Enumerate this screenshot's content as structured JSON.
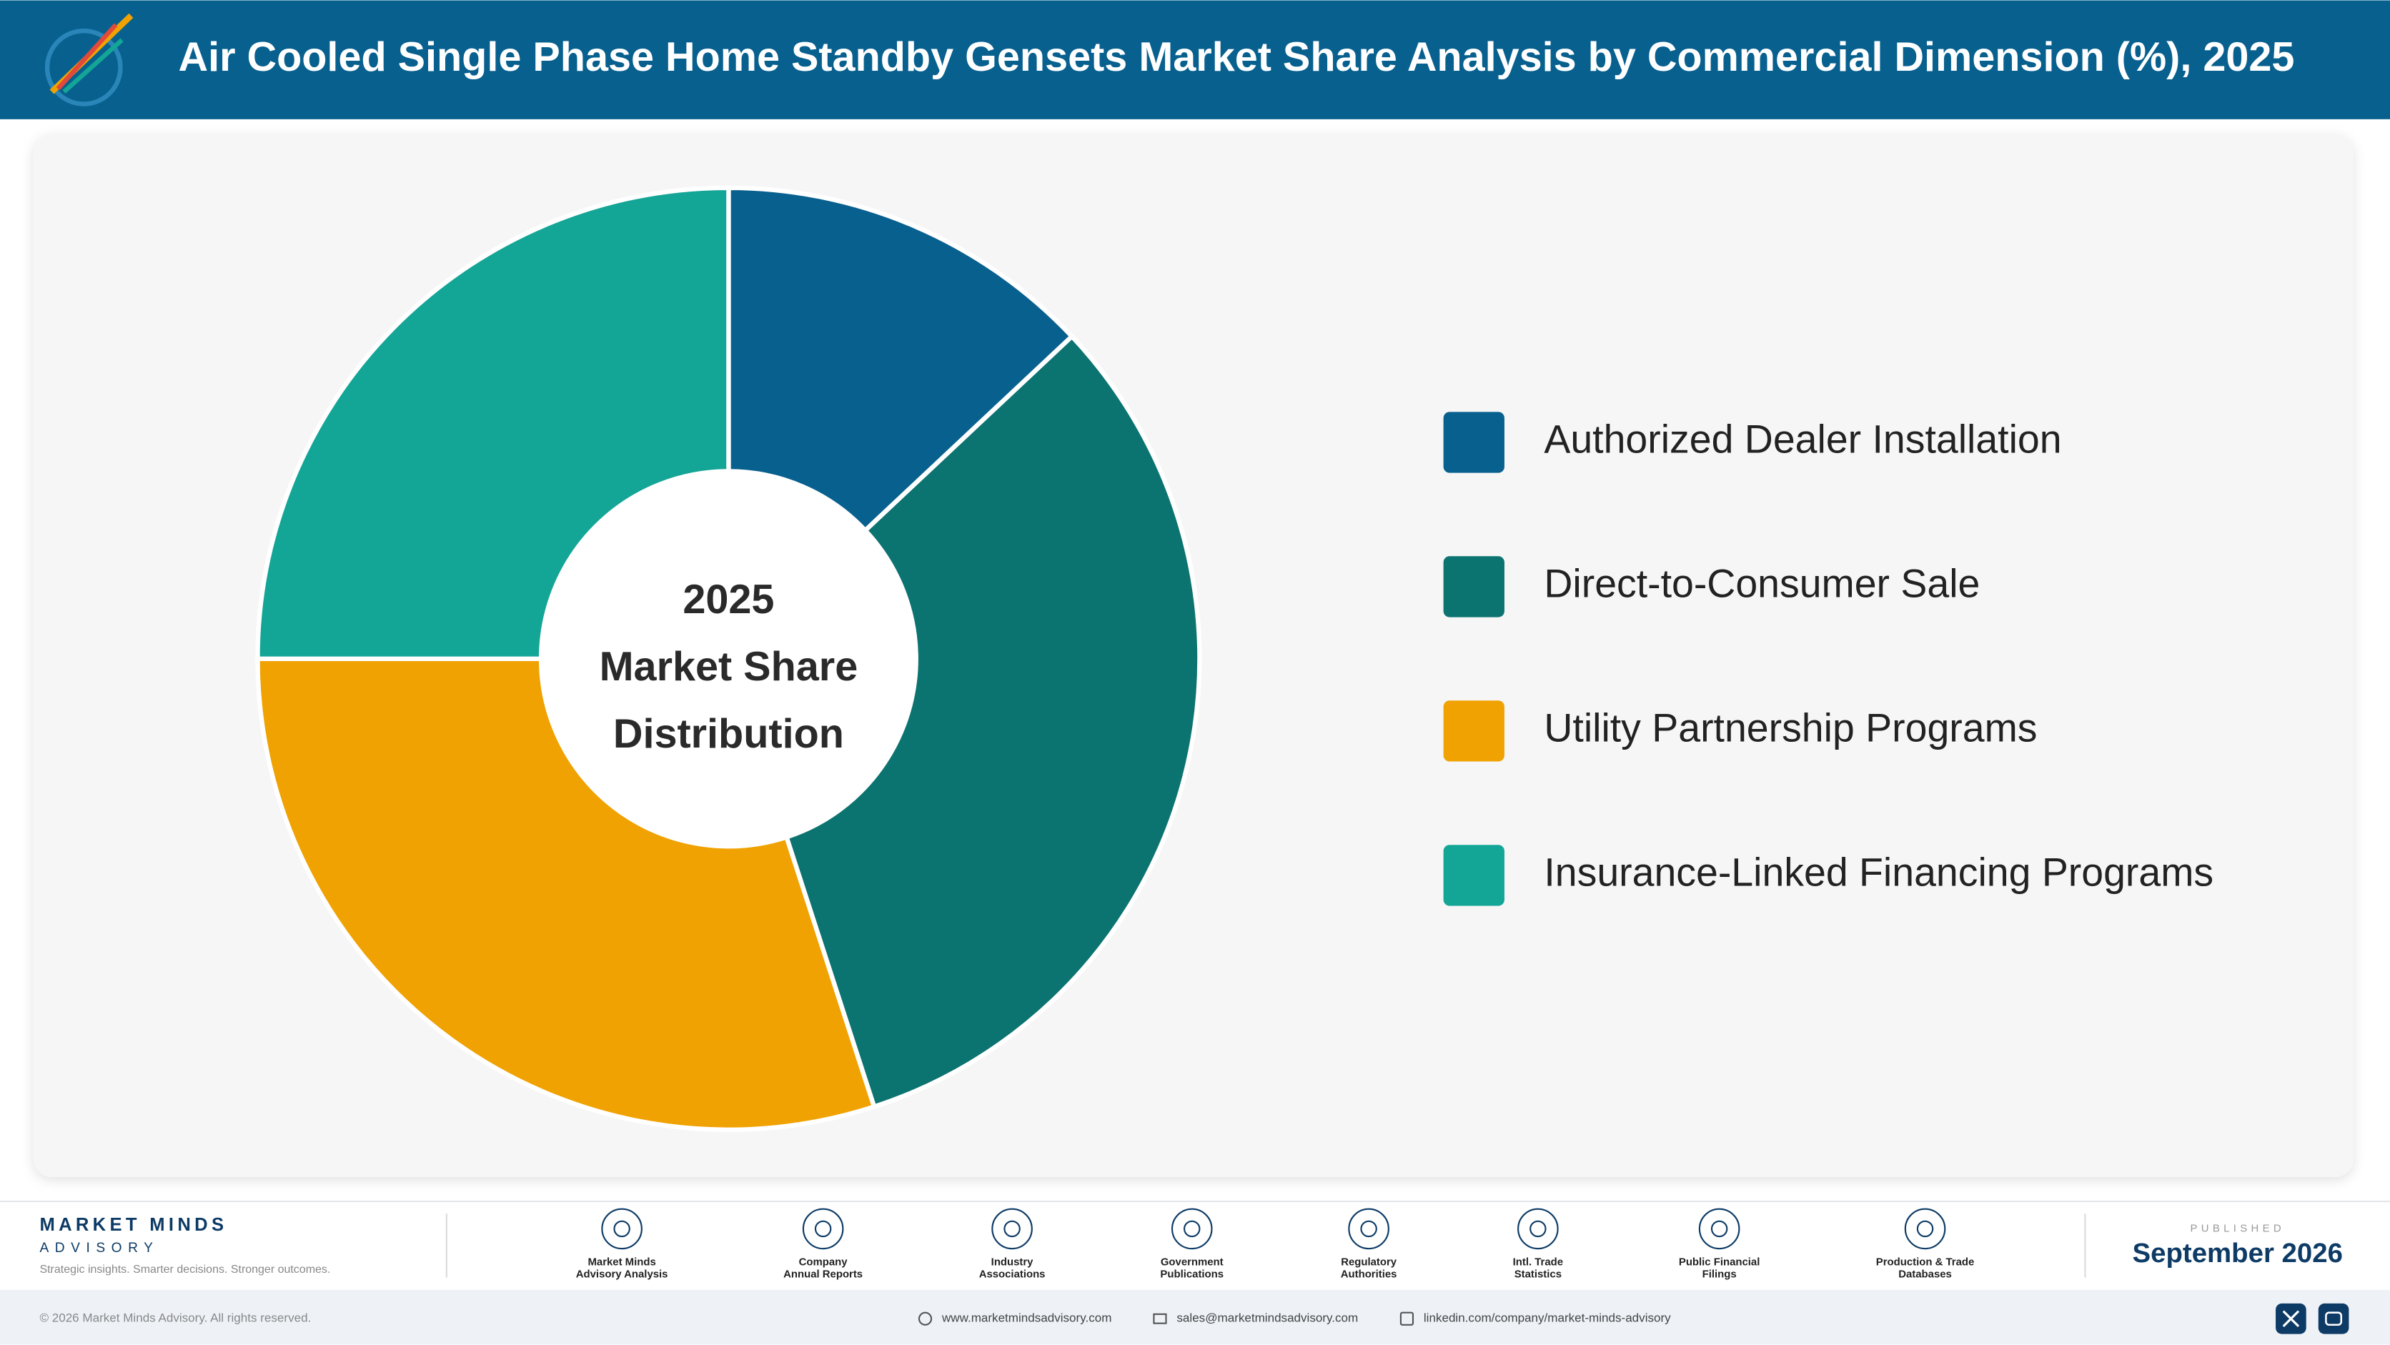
{
  "header": {
    "title": "Air Cooled Single Phase Home Standby Gensets Market Share Analysis by Commercial Dimension (%), 2025"
  },
  "chart_data": {
    "type": "donut",
    "center_label": [
      "2025",
      "Market Share",
      "Distribution"
    ],
    "categories": [
      "Authorized Dealer Installation",
      "Direct-to-Consumer Sale",
      "Utility Partnership Programs",
      "Insurance-Linked Financing Programs"
    ],
    "values": [
      13,
      32,
      30,
      25
    ],
    "colors": [
      "#08608f",
      "#0b7370",
      "#f0a202",
      "#13a596"
    ],
    "legend": "right"
  },
  "footer": {
    "brand": "MARKET MINDS",
    "brand_sub": "ADVISORY",
    "tagline": "Strategic insights. Smarter decisions. Stronger outcomes.",
    "sources": [
      [
        "Market Minds",
        "Advisory Analysis"
      ],
      [
        "Company",
        "Annual Reports"
      ],
      [
        "Industry",
        "Associations"
      ],
      [
        "Government",
        "Publications"
      ],
      [
        "Regulatory",
        "Authorities"
      ],
      [
        "Intl. Trade",
        "Statistics"
      ],
      [
        "Public Financial",
        "Filings"
      ],
      [
        "Production & Trade",
        "Databases"
      ]
    ],
    "published_label": "PUBLISHED",
    "published_date": "September 2026",
    "copyright": "© 2026 Market Minds Advisory. All rights reserved.",
    "website": "www.marketmindsadvisory.com",
    "email": "sales@marketmindsadvisory.com",
    "linkedin": "linkedin.com/company/market-minds-advisory"
  }
}
